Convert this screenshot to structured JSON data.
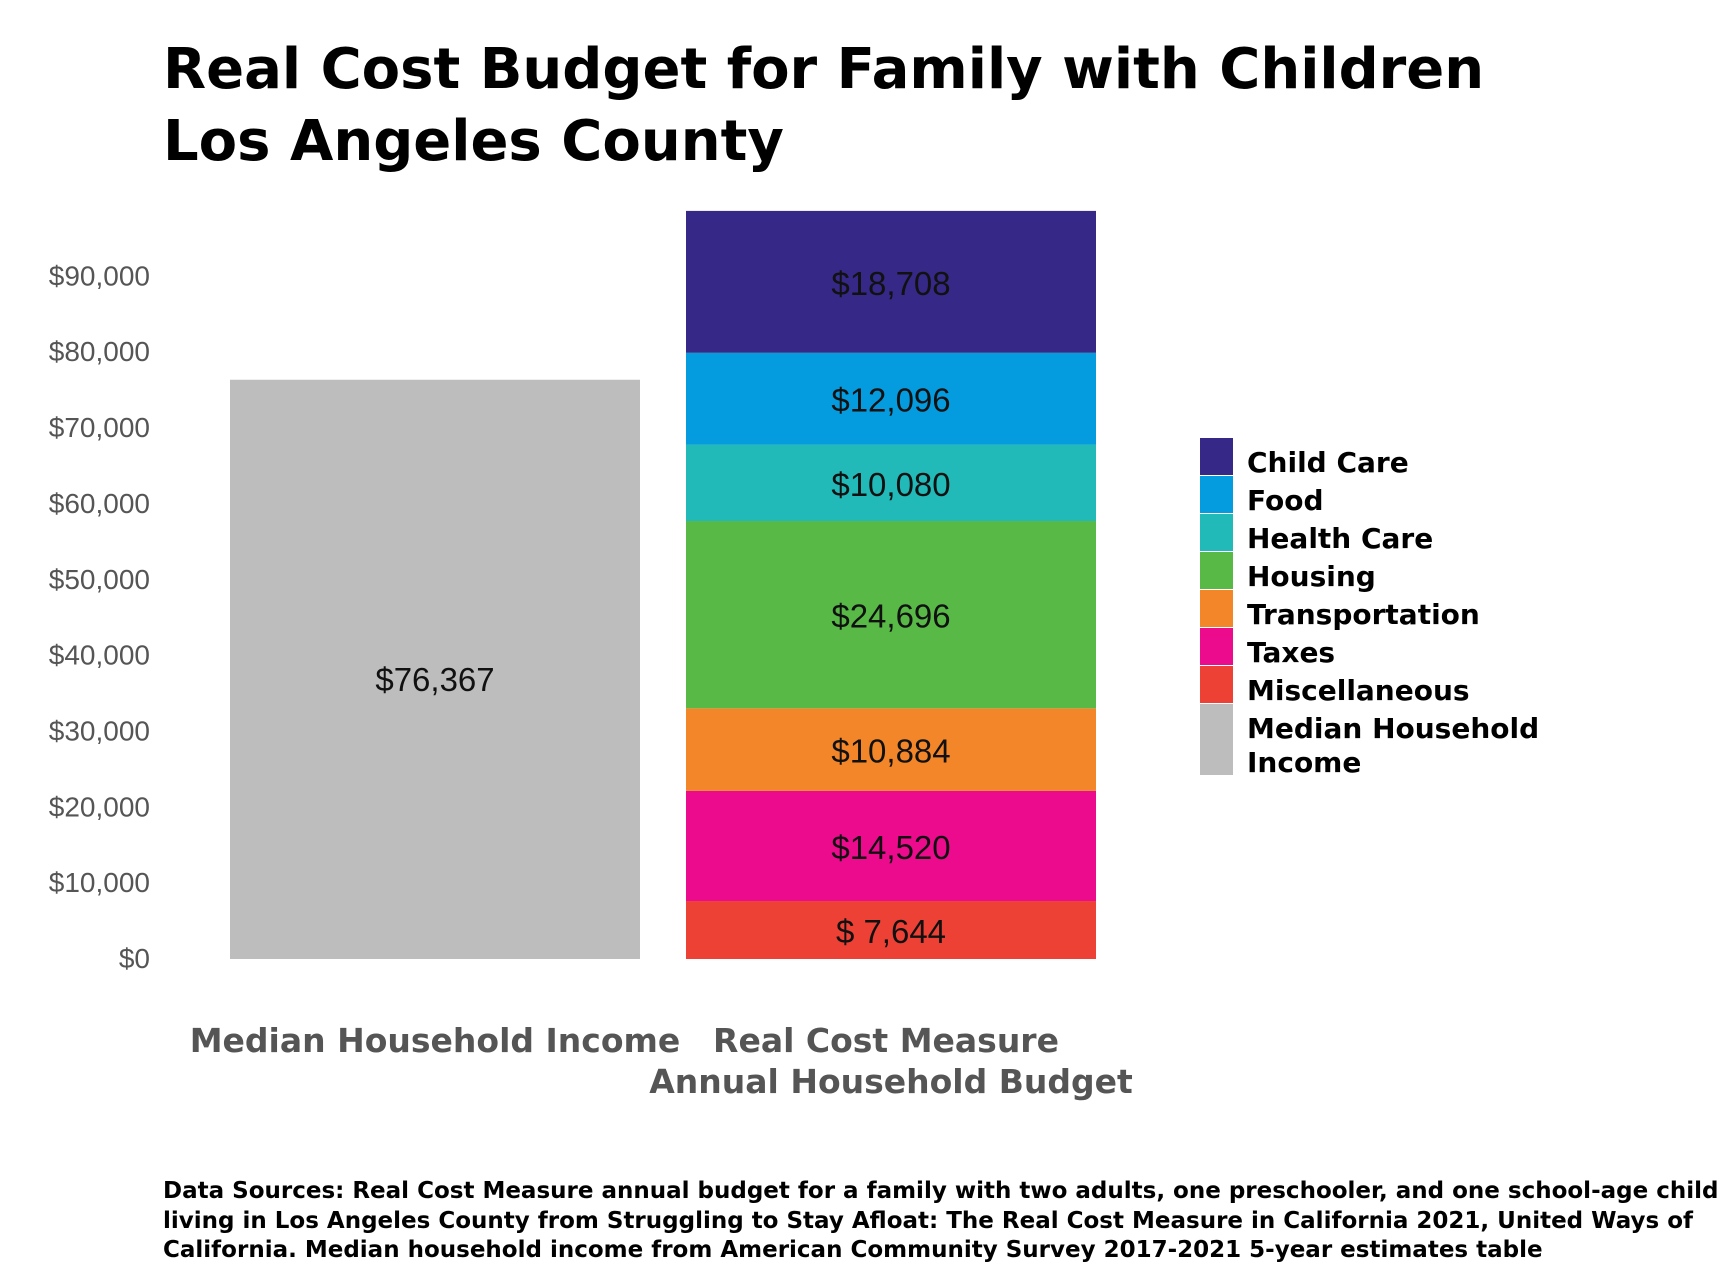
{
  "title_lines": [
    "Real Cost Budget for Family with Children",
    "Los Angeles County"
  ],
  "sources_lines": [
    "Data Sources: Real Cost Measure annual budget for a family with two adults, one preschooler, and one school-age child",
    "living in Los Angeles County from Struggling to Stay Afloat: The Real Cost Measure in California 2021, United Ways of",
    "California. Median household income from American Community Survey 2017-2021 5-year estimates table"
  ],
  "chart_data": {
    "type": "bar",
    "stacked": true,
    "ylim": [
      0,
      100000
    ],
    "y_ticks": [
      0,
      10000,
      20000,
      30000,
      40000,
      50000,
      60000,
      70000,
      80000,
      90000
    ],
    "y_tick_labels": [
      "$0",
      "$10,000",
      "$20,000",
      "$30,000",
      "$40,000",
      "$50,000",
      "$60,000",
      "$70,000",
      "$80,000",
      "$90,000"
    ],
    "grid": false,
    "legend_position": "right",
    "categories": [
      [
        "Median Household Income"
      ],
      [
        "Real Cost Measure",
        "Annual Household Budget"
      ]
    ],
    "series": [
      {
        "name": "Miscellaneous",
        "color": "#EE4136",
        "values": [
          null,
          7644
        ],
        "label": "$ 7,644"
      },
      {
        "name": "Taxes",
        "color": "#EC0B8C",
        "values": [
          null,
          14520
        ],
        "label": "$14,520"
      },
      {
        "name": "Transportation",
        "color": "#F4862A",
        "values": [
          null,
          10884
        ],
        "label": "$10,884"
      },
      {
        "name": "Housing",
        "color": "#58B947",
        "values": [
          null,
          24696
        ],
        "label": "$24,696"
      },
      {
        "name": "Health Care",
        "color": "#22BAB9",
        "values": [
          null,
          10080
        ],
        "label": "$10,080"
      },
      {
        "name": "Food",
        "color": "#049CDE",
        "values": [
          null,
          12096
        ],
        "label": "$12,096"
      },
      {
        "name": "Child Care",
        "color": "#352886",
        "values": [
          null,
          18708
        ],
        "label": "$18,708"
      },
      {
        "name": "Median Household Income",
        "color": "#BDBDBD",
        "values": [
          76367,
          null
        ],
        "label": "$76,367"
      }
    ],
    "legend_order": [
      "Child Care",
      "Food",
      "Health Care",
      "Housing",
      "Transportation",
      "Taxes",
      "Miscellaneous",
      "Median Household Income"
    ],
    "legend_label_lines": {
      "Median Household Income": [
        "Median Household",
        "Income"
      ]
    }
  }
}
